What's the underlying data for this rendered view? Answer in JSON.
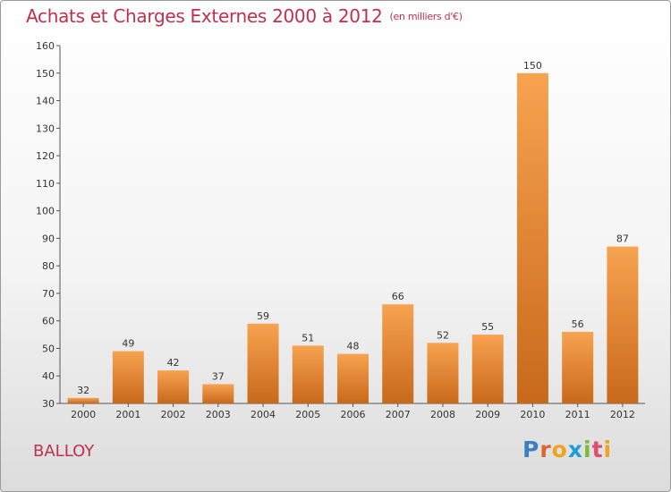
{
  "chart_data": {
    "type": "bar",
    "title": "Achats et Charges Externes 2000 à 2012",
    "subtitle": "(en milliers d'€)",
    "categories": [
      "2000",
      "2001",
      "2002",
      "2003",
      "2004",
      "2005",
      "2006",
      "2007",
      "2008",
      "2009",
      "2010",
      "2011",
      "2012"
    ],
    "values": [
      32,
      49,
      42,
      37,
      59,
      51,
      48,
      66,
      52,
      55,
      150,
      56,
      87
    ],
    "ylim": [
      30,
      160
    ],
    "yticks": [
      30,
      40,
      50,
      60,
      70,
      80,
      90,
      100,
      110,
      120,
      130,
      140,
      150,
      160
    ],
    "xlabel": "",
    "ylabel": "",
    "grid": false
  },
  "commune": "BALLOY",
  "logo": {
    "letters": [
      "P",
      "r",
      "o",
      "x",
      "i",
      "t",
      "i"
    ],
    "colors": [
      "#3c7fc2",
      "#e0642e",
      "#f2a31c",
      "#1f9bd7",
      "#7cba3a",
      "#e04d6d",
      "#f2a31c"
    ]
  },
  "colors": {
    "title": "#c0304c",
    "bar_light": "#f7a350",
    "bar_dark": "#c8691a"
  }
}
